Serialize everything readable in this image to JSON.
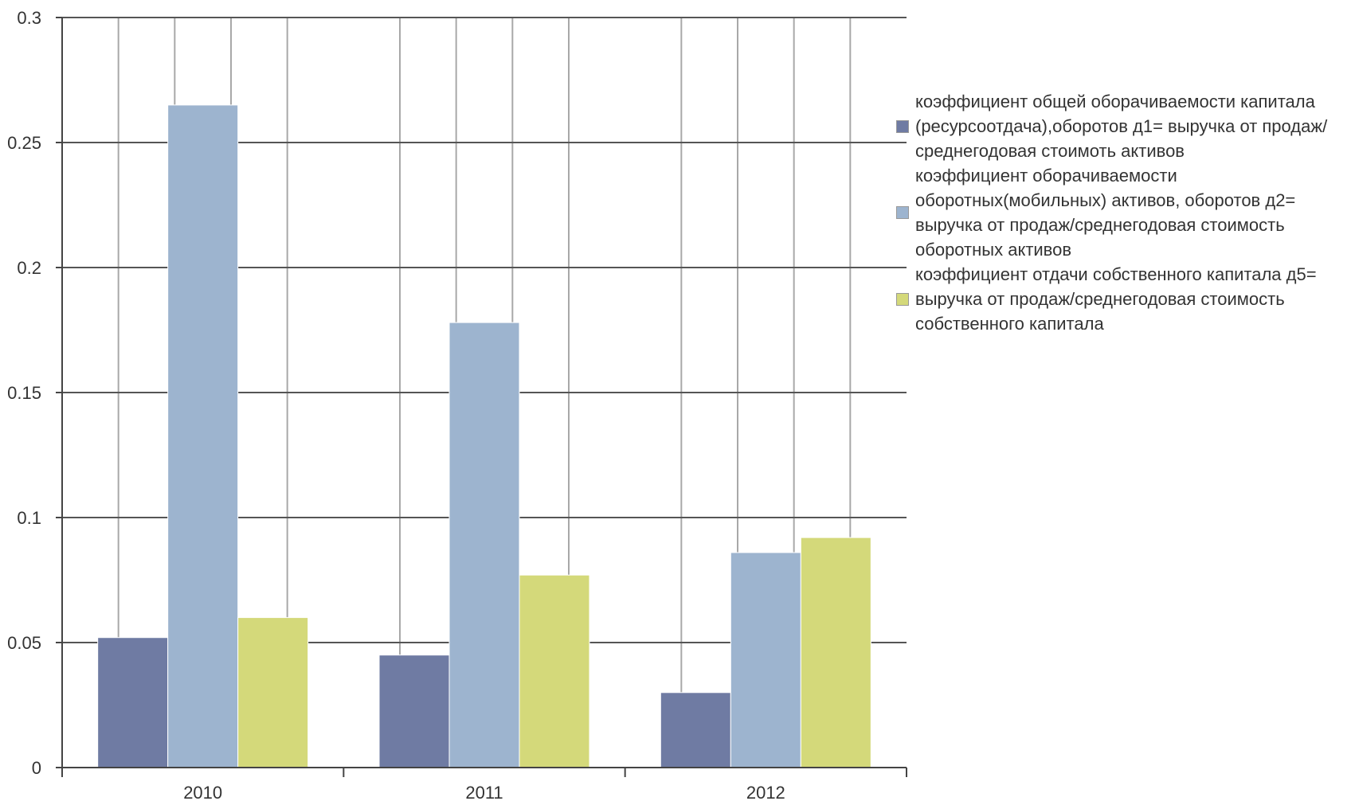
{
  "chart_data": {
    "type": "bar",
    "categories": [
      "2010",
      "2011",
      "2012"
    ],
    "series": [
      {
        "name": "коэффициент общей  оборачиваемости капитала (ресурсоотдача),оборотов д1= выручка от продаж/среднегодовая стоимоть активов",
        "color": "#6f7ba3",
        "values": [
          0.052,
          0.045,
          0.03
        ]
      },
      {
        "name": "коэффициент оборачиваемости оборотных(мобильных) активов, оборотов д2= выручка от продаж/среднегодовая стоимость оборотных активов",
        "color": "#9db4cf",
        "values": [
          0.265,
          0.178,
          0.086
        ]
      },
      {
        "name": "коэффициент отдачи собственного капитала д5= выручка от продаж/среднегодовая стоимость собственного капитала",
        "color": "#d4d97a",
        "values": [
          0.06,
          0.077,
          0.092
        ]
      }
    ],
    "ylim": [
      0,
      0.3
    ],
    "yticks": [
      "0",
      "0.05",
      "0.1",
      "0.15",
      "0.2",
      "0.25",
      "0.3"
    ],
    "grid": true,
    "legend_position": "right",
    "title": "",
    "xlabel": "",
    "ylabel": ""
  }
}
